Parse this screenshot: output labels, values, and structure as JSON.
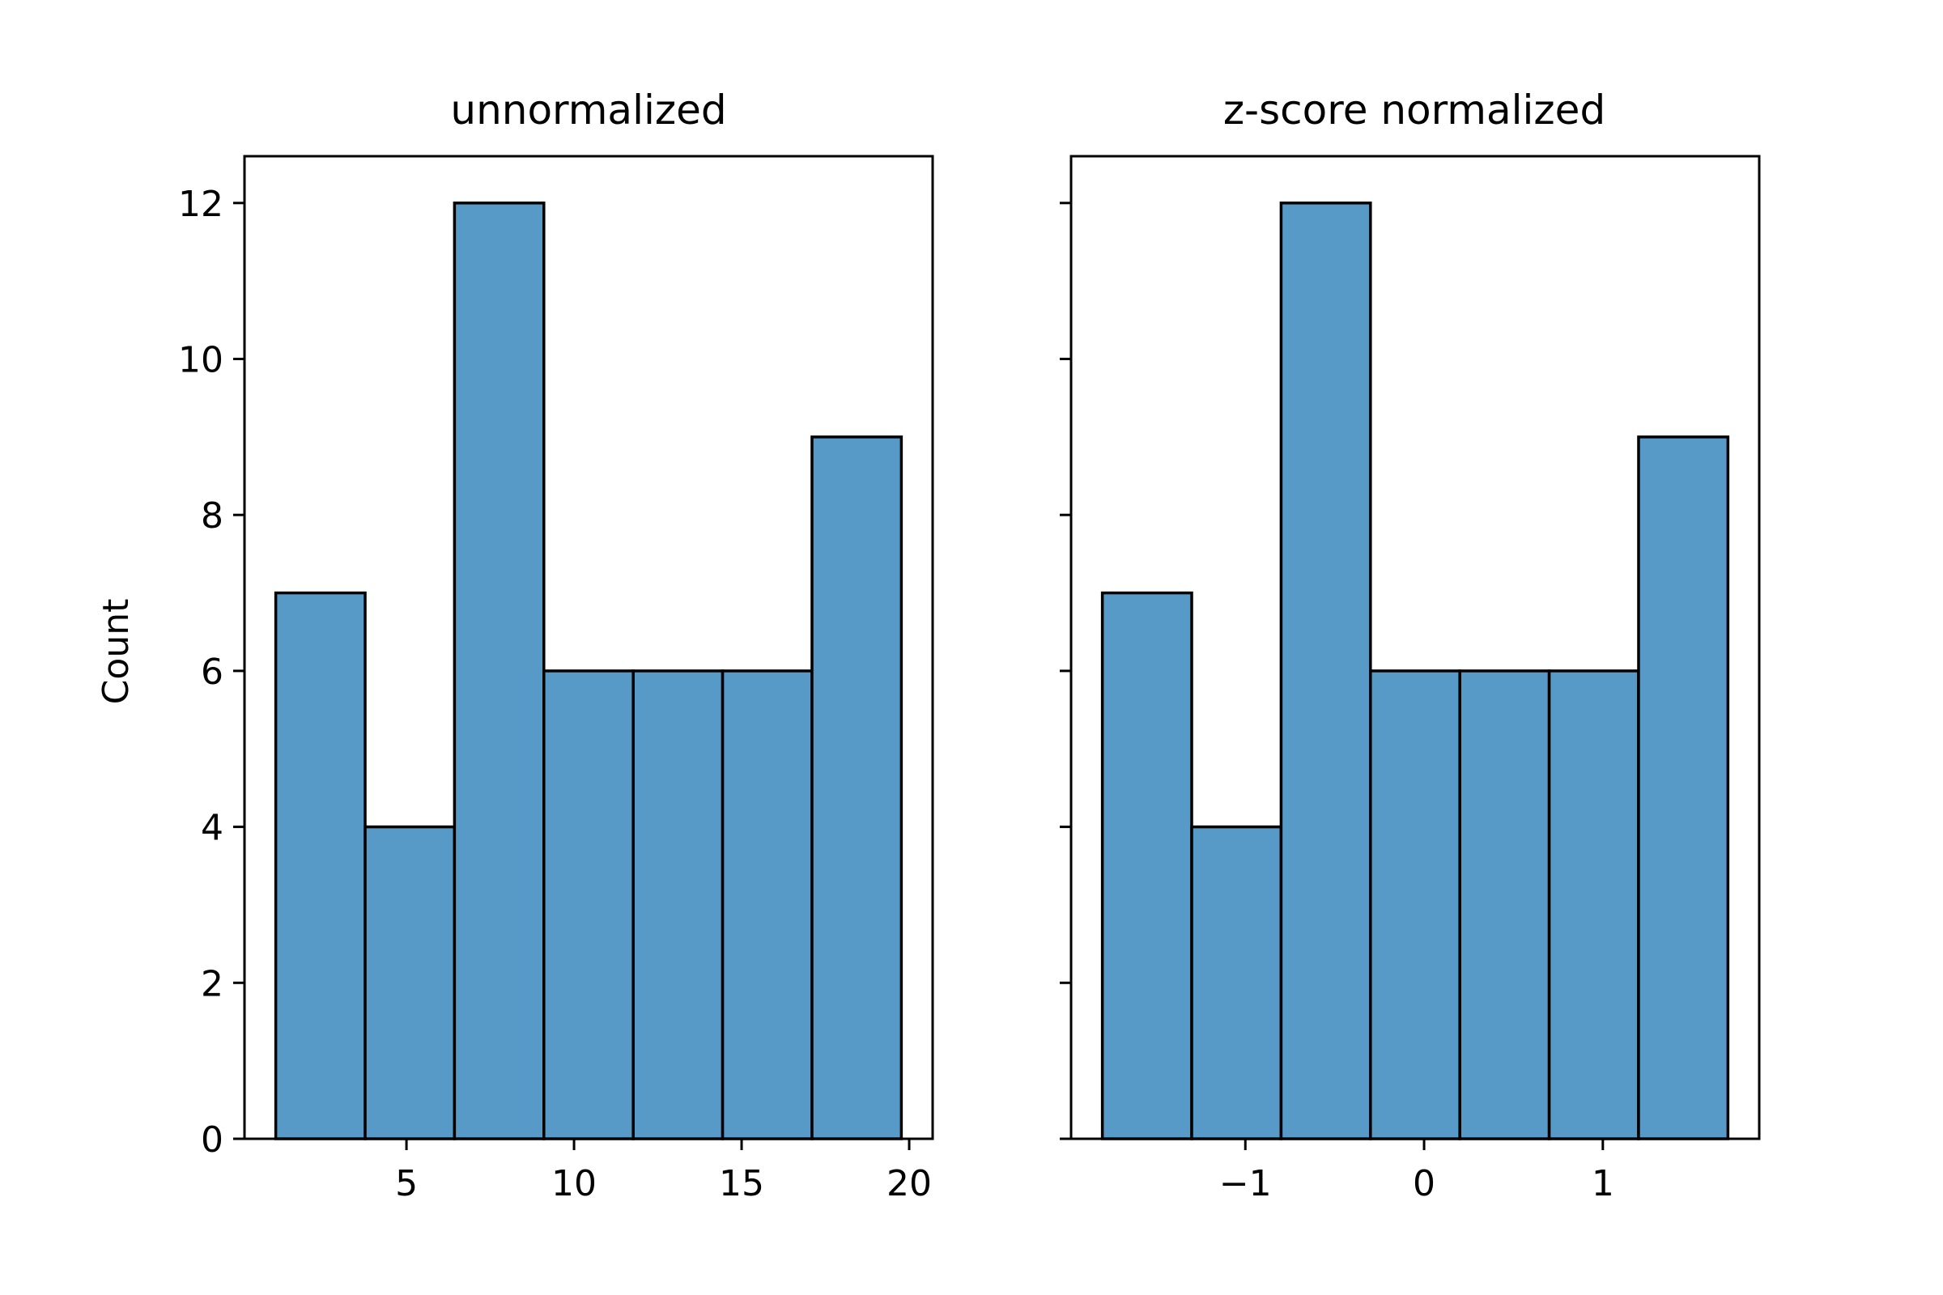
{
  "chart_data": [
    {
      "type": "bar",
      "title": "unnormalized",
      "ylabel": "Count",
      "xlabel": "",
      "bins": [
        {
          "x0": 1.1,
          "x1": 3.767,
          "count": 7
        },
        {
          "x0": 3.767,
          "x1": 6.433,
          "count": 4
        },
        {
          "x0": 6.433,
          "x1": 9.1,
          "count": 12
        },
        {
          "x0": 9.1,
          "x1": 11.767,
          "count": 6
        },
        {
          "x0": 11.767,
          "x1": 14.433,
          "count": 6
        },
        {
          "x0": 14.433,
          "x1": 17.1,
          "count": 6
        },
        {
          "x0": 17.1,
          "x1": 19.767,
          "count": 9
        }
      ],
      "xlim": [
        0.167,
        20.7
      ],
      "ylim": [
        0,
        12.6
      ],
      "xticks": [
        5,
        10,
        15,
        20
      ],
      "xtick_labels": [
        "5",
        "10",
        "15",
        "20"
      ],
      "yticks": [
        0,
        2,
        4,
        6,
        8,
        10,
        12
      ],
      "ytick_labels": [
        "0",
        "2",
        "4",
        "6",
        "8",
        "10",
        "12"
      ],
      "show_ytick_labels": true,
      "grid": false,
      "bar_color": "#5799c7",
      "edge_color": "#000000"
    },
    {
      "type": "bar",
      "title": "z-score normalized",
      "ylabel": "",
      "xlabel": "",
      "bins": [
        {
          "x0": -1.8,
          "x1": -1.3,
          "count": 7
        },
        {
          "x0": -1.3,
          "x1": -0.8,
          "count": 4
        },
        {
          "x0": -0.8,
          "x1": -0.3,
          "count": 12
        },
        {
          "x0": -0.3,
          "x1": 0.2,
          "count": 6
        },
        {
          "x0": 0.2,
          "x1": 0.7,
          "count": 6
        },
        {
          "x0": 0.7,
          "x1": 1.2,
          "count": 6
        },
        {
          "x0": 1.2,
          "x1": 1.7,
          "count": 9
        }
      ],
      "xlim": [
        -1.975,
        1.875
      ],
      "ylim": [
        0,
        12.6
      ],
      "xticks": [
        -1,
        0,
        1
      ],
      "xtick_labels": [
        "−1",
        "0",
        "1"
      ],
      "yticks": [
        0,
        2,
        4,
        6,
        8,
        10,
        12
      ],
      "ytick_labels": [
        "0",
        "2",
        "4",
        "6",
        "8",
        "10",
        "12"
      ],
      "show_ytick_labels": false,
      "grid": false,
      "bar_color": "#5799c7",
      "edge_color": "#000000"
    }
  ]
}
